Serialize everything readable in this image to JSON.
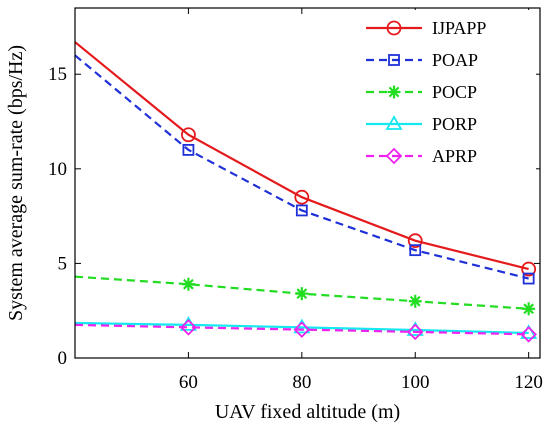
{
  "chart_data": {
    "type": "line",
    "xlabel": "UAV fixed altitude (m)",
    "ylabel": "System average sum-rate (bps/Hz)",
    "xlim": [
      40,
      122
    ],
    "ylim": [
      0,
      18.5
    ],
    "x_ticks": [
      60,
      80,
      100,
      120
    ],
    "y_ticks": [
      0,
      5,
      10,
      15
    ],
    "grid": false,
    "legend_position": "top-right",
    "series": [
      {
        "name": "IJPAPP",
        "color": "#e41a1c",
        "dash": "solid",
        "marker": "circle",
        "x": [
          40,
          60,
          80,
          100,
          120
        ],
        "y": [
          16.7,
          11.8,
          8.5,
          6.2,
          4.7
        ],
        "marker_x": [
          60,
          80,
          100,
          120
        ]
      },
      {
        "name": "POAP",
        "color": "#1f30d8",
        "dash": "dashed",
        "marker": "square",
        "x": [
          40,
          60,
          80,
          100,
          120
        ],
        "y": [
          16.0,
          11.0,
          7.8,
          5.7,
          4.2
        ],
        "marker_x": [
          60,
          80,
          100,
          120
        ]
      },
      {
        "name": "POCP",
        "color": "#22dd22",
        "dash": "dashed",
        "marker": "asterisk",
        "x": [
          40,
          60,
          80,
          100,
          120
        ],
        "y": [
          4.3,
          3.9,
          3.4,
          3.0,
          2.6
        ],
        "marker_x": [
          60,
          80,
          100,
          120
        ]
      },
      {
        "name": "PORP",
        "color": "#14e8f0",
        "dash": "solid",
        "marker": "triangle",
        "x": [
          40,
          60,
          80,
          100,
          120
        ],
        "y": [
          1.85,
          1.75,
          1.62,
          1.48,
          1.32
        ],
        "marker_x": [
          60,
          80,
          100,
          120
        ]
      },
      {
        "name": "APRP",
        "color": "#ee22ee",
        "dash": "dashed",
        "marker": "diamond",
        "x": [
          40,
          60,
          80,
          100,
          120
        ],
        "y": [
          1.75,
          1.62,
          1.5,
          1.38,
          1.25
        ],
        "marker_x": [
          60,
          80,
          100,
          120
        ]
      }
    ]
  }
}
